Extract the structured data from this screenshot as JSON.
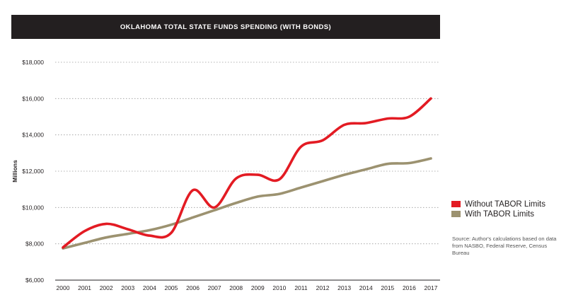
{
  "chart_data": {
    "type": "line",
    "title": "OKLAHOMA TOTAL STATE FUNDS SPENDING (WITH BONDS)",
    "xlabel": "",
    "ylabel": "Millions",
    "x": [
      "2000",
      "2001",
      "2002",
      "2003",
      "2004",
      "2005",
      "2006",
      "2007",
      "2008",
      "2009",
      "2010",
      "2011",
      "2012",
      "2013",
      "2014",
      "2015",
      "2016",
      "2017"
    ],
    "ylim": [
      6000,
      18000
    ],
    "yticks": [
      6000,
      8000,
      10000,
      12000,
      14000,
      16000,
      18000
    ],
    "ytick_labels": [
      "$6,000",
      "$8,000",
      "$10,000",
      "$12,000",
      "$14,000",
      "$16,000",
      "$18,000"
    ],
    "grid": true,
    "legend_position": "right",
    "series": [
      {
        "name": "Without TABOR Limits",
        "color": "#e31b23",
        "values": [
          7800,
          8700,
          9100,
          8800,
          8450,
          8600,
          10950,
          10000,
          11600,
          11800,
          11550,
          13350,
          13700,
          14550,
          14650,
          14900,
          15000,
          16000
        ]
      },
      {
        "name": "With TABOR Limits",
        "color": "#9c9270",
        "values": [
          7750,
          8050,
          8350,
          8550,
          8750,
          9050,
          9450,
          9850,
          10250,
          10600,
          10750,
          11100,
          11450,
          11800,
          12100,
          12400,
          12450,
          12700
        ]
      }
    ],
    "source": "Source: Author's calculations based on data from NASBO, Federal Reserve, Census Bureau"
  }
}
